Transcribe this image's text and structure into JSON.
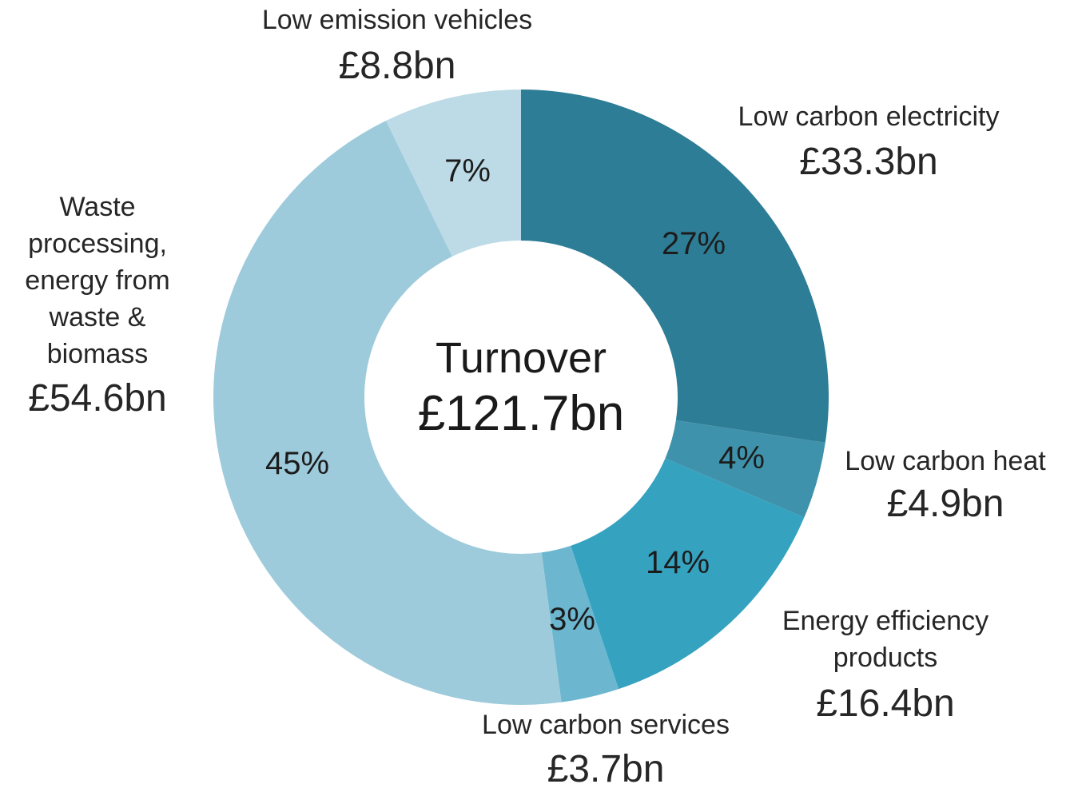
{
  "chart_data": {
    "type": "pie",
    "center": {
      "title": "Turnover",
      "total": "£121.7bn"
    },
    "slices": [
      {
        "name_lines": [
          "Low carbon electricity"
        ],
        "value": 33.3,
        "value_label": "£33.3bn",
        "percent_label": "27%",
        "color": "#2e7d96"
      },
      {
        "name_lines": [
          "Low carbon heat"
        ],
        "value": 4.9,
        "value_label": "£4.9bn",
        "percent_label": "4%",
        "color": "#3f92ab"
      },
      {
        "name_lines": [
          "Energy efficiency",
          "products"
        ],
        "value": 16.4,
        "value_label": "£16.4bn",
        "percent_label": "14%",
        "color": "#35a2bf"
      },
      {
        "name_lines": [
          "Low carbon services"
        ],
        "value": 3.7,
        "value_label": "£3.7bn",
        "percent_label": "3%",
        "color": "#6cb7cf"
      },
      {
        "name_lines": [
          "Waste",
          "processing,",
          "energy from",
          "waste &",
          "biomass"
        ],
        "value": 54.6,
        "value_label": "£54.6bn",
        "percent_label": "45%",
        "color": "#9ecbdc"
      },
      {
        "name_lines": [
          "Low emission vehicles"
        ],
        "value": 8.8,
        "value_label": "£8.8bn",
        "percent_label": "7%",
        "color": "#bcdbe6"
      }
    ]
  }
}
